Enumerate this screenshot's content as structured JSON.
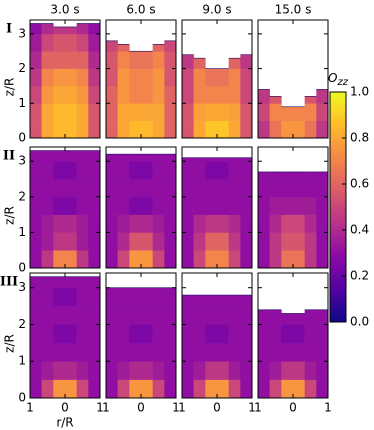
{
  "chart_data": {
    "type": "heatmap",
    "columns": [
      "3.0 s",
      "6.0 s",
      "9.0 s",
      "15.0 s"
    ],
    "rows": [
      "I",
      "II",
      "III"
    ],
    "ylabel": "z/R",
    "xlabel": "r/R",
    "xlim": [
      -1,
      1
    ],
    "xticks": [
      {
        "value": -1,
        "label": "1"
      },
      0,
      1
    ],
    "ylim": [
      0,
      3.4
    ],
    "yticks": [
      0,
      1,
      2,
      3
    ],
    "r_bins": [
      -1,
      -0.667,
      -0.333,
      0,
      0.333,
      0.667,
      1
    ],
    "z_bins": [
      0,
      0.5,
      1,
      1.5,
      2,
      2.5,
      3,
      3.5
    ],
    "colorbar": {
      "label": {
        "base": "O",
        "sub": "zz"
      },
      "lim": [
        0,
        1
      ],
      "ticks": [
        {
          "value": 0,
          "label": "0.0"
        },
        {
          "value": 0.2,
          "label": "0.2"
        },
        {
          "value": 0.4,
          "label": "0.4"
        },
        {
          "value": 0.6,
          "label": "0.6"
        },
        {
          "value": 0.8,
          "label": "0.8"
        },
        {
          "value": 1,
          "label": "1.0"
        }
      ],
      "colormap": [
        "#0d0887",
        "#5302a3",
        "#8b0aa5",
        "#b83289",
        "#db5c68",
        "#f48849",
        "#febc2a",
        "#f0f921"
      ]
    },
    "panels": [
      [
        {
          "surface": [
            3.3,
            3.3,
            3.2,
            3.2,
            3.3,
            3.3
          ],
          "values": [
            [
              0.55,
              0.8,
              0.85,
              0.85,
              0.8,
              0.55
            ],
            [
              0.55,
              0.8,
              0.85,
              0.85,
              0.8,
              0.55
            ],
            [
              0.5,
              0.75,
              0.8,
              0.8,
              0.75,
              0.5
            ],
            [
              0.45,
              0.7,
              0.75,
              0.75,
              0.7,
              0.45
            ],
            [
              0.4,
              0.6,
              0.6,
              0.6,
              0.6,
              0.4
            ],
            [
              0.35,
              0.5,
              0.55,
              0.55,
              0.5,
              0.35
            ],
            [
              0.3,
              0.4,
              0.45,
              0.45,
              0.4,
              0.3
            ]
          ]
        },
        {
          "surface": [
            2.8,
            2.7,
            2.5,
            2.5,
            2.7,
            2.8
          ],
          "values": [
            [
              0.6,
              0.8,
              0.85,
              0.85,
              0.8,
              0.6
            ],
            [
              0.6,
              0.8,
              0.8,
              0.8,
              0.8,
              0.6
            ],
            [
              0.6,
              0.75,
              0.7,
              0.7,
              0.75,
              0.6
            ],
            [
              0.55,
              0.75,
              0.7,
              0.7,
              0.75,
              0.55
            ],
            [
              0.55,
              0.7,
              0.65,
              0.65,
              0.7,
              0.55
            ],
            [
              0.5,
              0.6,
              null,
              null,
              0.6,
              0.5
            ],
            [
              null,
              null,
              null,
              null,
              null,
              null
            ]
          ]
        },
        {
          "surface": [
            2.4,
            2.3,
            2.0,
            2.0,
            2.3,
            2.4
          ],
          "values": [
            [
              0.55,
              0.8,
              0.88,
              0.88,
              0.8,
              0.55
            ],
            [
              0.55,
              0.78,
              0.8,
              0.8,
              0.78,
              0.55
            ],
            [
              0.5,
              0.7,
              0.7,
              0.7,
              0.7,
              0.5
            ],
            [
              0.5,
              0.7,
              0.65,
              0.65,
              0.7,
              0.5
            ],
            [
              0.45,
              0.6,
              null,
              null,
              0.6,
              0.45
            ],
            [
              null,
              null,
              null,
              null,
              null,
              null
            ],
            [
              null,
              null,
              null,
              null,
              null,
              null
            ]
          ]
        },
        {
          "surface": [
            1.4,
            1.2,
            0.9,
            0.9,
            1.2,
            1.4
          ],
          "values": [
            [
              0.45,
              0.65,
              0.75,
              0.75,
              0.65,
              0.45
            ],
            [
              0.5,
              0.7,
              0.7,
              0.7,
              0.7,
              0.5
            ],
            [
              0.45,
              0.55,
              null,
              null,
              0.55,
              0.45
            ],
            [
              null,
              null,
              null,
              null,
              null,
              null
            ],
            [
              null,
              null,
              null,
              null,
              null,
              null
            ],
            [
              null,
              null,
              null,
              null,
              null,
              null
            ],
            [
              null,
              null,
              null,
              null,
              null,
              null
            ]
          ]
        }
      ],
      [
        {
          "surface": [
            3.3,
            3.3,
            3.3,
            3.3,
            3.3,
            3.3
          ],
          "values": [
            [
              0.3,
              0.45,
              0.7,
              0.7,
              0.45,
              0.3
            ],
            [
              0.3,
              0.35,
              0.45,
              0.45,
              0.35,
              0.3
            ],
            [
              0.3,
              0.35,
              0.4,
              0.4,
              0.35,
              0.3
            ],
            [
              0.3,
              0.3,
              0.25,
              0.25,
              0.3,
              0.3
            ],
            [
              0.3,
              0.3,
              0.3,
              0.3,
              0.3,
              0.3
            ],
            [
              0.3,
              0.3,
              0.25,
              0.25,
              0.3,
              0.3
            ],
            [
              0.3,
              0.3,
              0.3,
              0.3,
              0.3,
              0.3
            ]
          ]
        },
        {
          "surface": [
            3.2,
            3.2,
            3.2,
            3.2,
            3.2,
            3.2
          ],
          "values": [
            [
              0.3,
              0.5,
              0.75,
              0.75,
              0.5,
              0.3
            ],
            [
              0.3,
              0.4,
              0.55,
              0.55,
              0.4,
              0.3
            ],
            [
              0.3,
              0.35,
              0.4,
              0.4,
              0.35,
              0.3
            ],
            [
              0.3,
              0.3,
              0.25,
              0.25,
              0.3,
              0.3
            ],
            [
              0.3,
              0.3,
              0.3,
              0.3,
              0.3,
              0.3
            ],
            [
              0.3,
              0.3,
              0.25,
              0.25,
              0.3,
              0.3
            ],
            [
              0.3,
              0.3,
              0.3,
              0.3,
              0.3,
              0.3
            ]
          ]
        },
        {
          "surface": [
            3.1,
            3.1,
            3.1,
            3.1,
            3.1,
            3.1
          ],
          "values": [
            [
              0.3,
              0.5,
              0.7,
              0.7,
              0.5,
              0.3
            ],
            [
              0.3,
              0.45,
              0.6,
              0.6,
              0.45,
              0.3
            ],
            [
              0.3,
              0.4,
              0.45,
              0.45,
              0.4,
              0.3
            ],
            [
              0.3,
              0.3,
              0.3,
              0.3,
              0.3,
              0.3
            ],
            [
              0.3,
              0.3,
              0.3,
              0.3,
              0.3,
              0.3
            ],
            [
              0.3,
              0.3,
              0.25,
              0.25,
              0.3,
              0.3
            ],
            [
              0.3,
              0.3,
              0.3,
              0.3,
              0.3,
              0.3
            ]
          ]
        },
        {
          "surface": [
            2.7,
            2.7,
            2.7,
            2.7,
            2.7,
            2.7
          ],
          "values": [
            [
              0.3,
              0.45,
              0.65,
              0.65,
              0.45,
              0.3
            ],
            [
              0.3,
              0.45,
              0.55,
              0.55,
              0.45,
              0.3
            ],
            [
              0.3,
              0.4,
              0.5,
              0.5,
              0.4,
              0.3
            ],
            [
              0.3,
              0.35,
              0.35,
              0.35,
              0.35,
              0.3
            ],
            [
              0.3,
              0.3,
              0.3,
              0.3,
              0.3,
              0.3
            ],
            [
              0.3,
              0.3,
              0.3,
              0.3,
              0.3,
              0.3
            ],
            [
              null,
              null,
              null,
              null,
              null,
              null
            ]
          ]
        }
      ],
      [
        {
          "surface": [
            3.3,
            3.3,
            3.3,
            3.3,
            3.3,
            3.3
          ],
          "values": [
            [
              0.3,
              0.5,
              0.75,
              0.75,
              0.5,
              0.3
            ],
            [
              0.3,
              0.35,
              0.4,
              0.4,
              0.35,
              0.3
            ],
            [
              0.3,
              0.3,
              0.3,
              0.3,
              0.3,
              0.3
            ],
            [
              0.3,
              0.3,
              0.25,
              0.25,
              0.3,
              0.3
            ],
            [
              0.3,
              0.3,
              0.3,
              0.3,
              0.3,
              0.3
            ],
            [
              0.3,
              0.3,
              0.25,
              0.25,
              0.3,
              0.3
            ],
            [
              0.3,
              0.3,
              0.3,
              0.3,
              0.3,
              0.3
            ]
          ]
        },
        {
          "surface": [
            3.0,
            3.0,
            3.0,
            3.0,
            3.0,
            3.0
          ],
          "values": [
            [
              0.3,
              0.5,
              0.75,
              0.75,
              0.5,
              0.3
            ],
            [
              0.3,
              0.35,
              0.4,
              0.4,
              0.35,
              0.3
            ],
            [
              0.3,
              0.3,
              0.3,
              0.3,
              0.3,
              0.3
            ],
            [
              0.3,
              0.3,
              0.25,
              0.25,
              0.3,
              0.3
            ],
            [
              0.3,
              0.3,
              0.3,
              0.3,
              0.3,
              0.3
            ],
            [
              0.3,
              0.3,
              0.3,
              0.3,
              0.3,
              0.3
            ],
            [
              null,
              null,
              null,
              null,
              null,
              null
            ]
          ]
        },
        {
          "surface": [
            2.8,
            2.8,
            2.8,
            2.8,
            2.8,
            2.8
          ],
          "values": [
            [
              0.3,
              0.5,
              0.75,
              0.75,
              0.5,
              0.3
            ],
            [
              0.3,
              0.35,
              0.45,
              0.45,
              0.35,
              0.3
            ],
            [
              0.3,
              0.3,
              0.3,
              0.3,
              0.3,
              0.3
            ],
            [
              0.3,
              0.3,
              0.25,
              0.25,
              0.3,
              0.3
            ],
            [
              0.3,
              0.3,
              0.3,
              0.3,
              0.3,
              0.3
            ],
            [
              0.3,
              0.3,
              0.3,
              0.3,
              0.3,
              0.3
            ],
            [
              null,
              null,
              null,
              null,
              null,
              null
            ]
          ]
        },
        {
          "surface": [
            2.4,
            2.4,
            2.3,
            2.3,
            2.4,
            2.4
          ],
          "values": [
            [
              0.3,
              0.5,
              0.75,
              0.75,
              0.5,
              0.3
            ],
            [
              0.3,
              0.35,
              0.45,
              0.45,
              0.35,
              0.3
            ],
            [
              0.3,
              0.3,
              0.3,
              0.3,
              0.3,
              0.3
            ],
            [
              0.3,
              0.3,
              0.25,
              0.25,
              0.3,
              0.3
            ],
            [
              0.3,
              0.3,
              0.3,
              0.3,
              0.3,
              0.3
            ],
            [
              null,
              null,
              null,
              null,
              null,
              null
            ],
            [
              null,
              null,
              null,
              null,
              null,
              null
            ]
          ]
        }
      ]
    ]
  }
}
